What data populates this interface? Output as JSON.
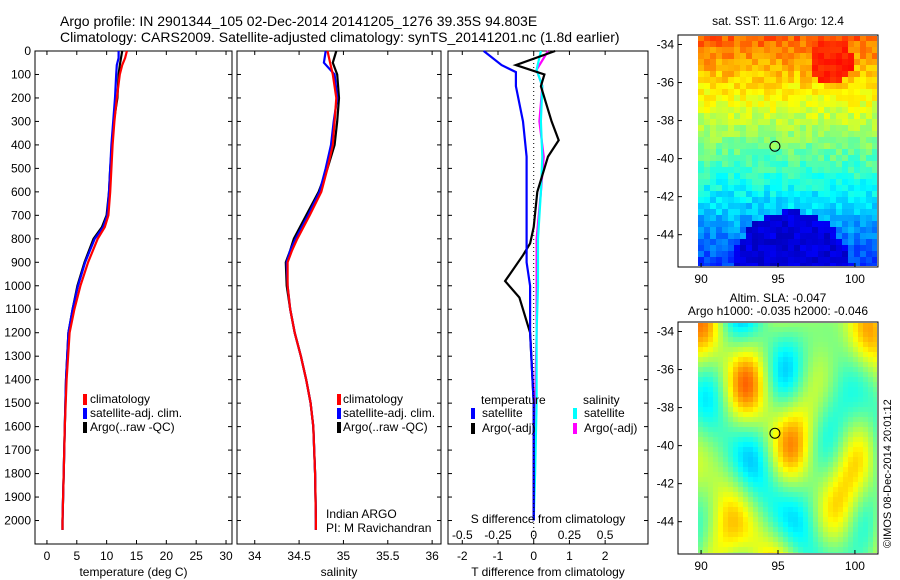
{
  "header": {
    "line1": "Argo profile: IN 2901344_105 02-Dec-2014 20141205_1276 39.35S 94.803E",
    "line2": "Climatology: CARS2009. Satellite-adjusted climatology: synTS_20141201.nc (1.8d earlier)"
  },
  "colors": {
    "climatology": "#ff0000",
    "satellite": "#0000ff",
    "argo": "#000000",
    "sal_satellite": "#00ffff",
    "sal_argo": "#ff00ff"
  },
  "chart_data": [
    {
      "id": "temperature",
      "type": "line",
      "xlabel": "temperature (deg C)",
      "ylabel": "",
      "xlim": [
        -2,
        31
      ],
      "ylim": [
        2100,
        0
      ],
      "xticks": [
        0,
        5,
        10,
        15,
        20,
        25,
        30
      ],
      "yticks": [
        0,
        100,
        200,
        300,
        400,
        500,
        600,
        700,
        800,
        900,
        1000,
        1100,
        1200,
        1300,
        1400,
        1500,
        1600,
        1700,
        1800,
        1900,
        2000
      ],
      "legend": [
        "climatology",
        "satellite-adj. clim.",
        "Argo(..raw -QC)"
      ],
      "series": [
        {
          "name": "climatology",
          "color": "#ff0000",
          "x": [
            13.4,
            13.1,
            12.6,
            12.2,
            11.7,
            11.3,
            11.0,
            10.8,
            10.6,
            10.3,
            9.7,
            8.5,
            6.9,
            5.6,
            4.6,
            3.8,
            3.3,
            3.0,
            2.8,
            2.7,
            2.6,
            2.6
          ],
          "y": [
            0,
            30,
            60,
            100,
            200,
            300,
            400,
            500,
            600,
            700,
            750,
            800,
            900,
            1000,
            1100,
            1200,
            1400,
            1600,
            1800,
            1900,
            2000,
            2040
          ]
        },
        {
          "name": "satellite-adj. clim.",
          "color": "#0000ff",
          "x": [
            12.0,
            12.0,
            11.7,
            11.6,
            11.4,
            11.1,
            10.8,
            10.6,
            10.4,
            10.1,
            9.4,
            8.0,
            6.4,
            5.2,
            4.3,
            3.6,
            3.2,
            3.0,
            2.8,
            2.7,
            2.6,
            2.6
          ],
          "y": [
            0,
            30,
            60,
            100,
            200,
            300,
            400,
            500,
            600,
            700,
            750,
            800,
            900,
            1000,
            1100,
            1200,
            1400,
            1600,
            1800,
            1900,
            2000,
            2040
          ]
        },
        {
          "name": "Argo(..raw -QC)",
          "color": "#000000",
          "x": [
            12.6,
            12.4,
            12.2,
            12.0,
            11.8,
            11.2,
            10.9,
            10.6,
            10.4,
            10.0,
            9.2,
            7.8,
            6.3,
            5.1,
            4.3,
            3.6,
            3.2,
            3.0,
            2.8,
            2.7,
            2.6,
            2.6
          ],
          "y": [
            0,
            30,
            60,
            100,
            200,
            300,
            400,
            500,
            600,
            700,
            750,
            800,
            900,
            1000,
            1100,
            1200,
            1400,
            1600,
            1800,
            1900,
            2000,
            2040
          ]
        }
      ]
    },
    {
      "id": "salinity",
      "type": "line",
      "xlabel": "salinity",
      "ylabel": "",
      "xlim": [
        33.8,
        36.1
      ],
      "ylim": [
        2100,
        0
      ],
      "xticks": [
        34,
        34.5,
        35,
        35.5,
        36
      ],
      "legend": [
        "climatology",
        "satellite-adj. clim.",
        "Argo(..raw -QC)"
      ],
      "annotation": [
        "Indian ARGO",
        "PI: M Ravichandran"
      ],
      "series": [
        {
          "name": "climatology",
          "color": "#ff0000",
          "x": [
            34.82,
            34.85,
            34.88,
            34.92,
            34.9,
            34.88,
            34.82,
            34.75,
            34.62,
            34.48,
            34.42,
            34.37,
            34.37,
            34.4,
            34.45,
            34.52,
            34.58,
            34.63,
            34.66,
            34.68,
            34.69,
            34.69
          ],
          "y": [
            0,
            50,
            100,
            200,
            300,
            400,
            500,
            600,
            700,
            800,
            850,
            900,
            1000,
            1100,
            1200,
            1300,
            1400,
            1500,
            1600,
            1800,
            2000,
            2040
          ]
        },
        {
          "name": "satellite-adj. clim.",
          "color": "#0000ff",
          "x": [
            34.8,
            34.78,
            34.9,
            34.93,
            34.89,
            34.86,
            34.8,
            34.73,
            34.6,
            34.46,
            34.4,
            34.36,
            34.37,
            34.4,
            34.45,
            34.52,
            34.58,
            34.63,
            34.66,
            34.68,
            34.69,
            34.69
          ],
          "y": [
            0,
            50,
            100,
            200,
            300,
            400,
            500,
            600,
            700,
            800,
            850,
            900,
            1000,
            1100,
            1200,
            1300,
            1400,
            1500,
            1600,
            1800,
            2000,
            2040
          ]
        },
        {
          "name": "Argo(..raw -QC)",
          "color": "#000000",
          "x": [
            34.92,
            34.88,
            34.93,
            34.95,
            34.93,
            34.9,
            34.82,
            34.72,
            34.58,
            34.44,
            34.4,
            34.35,
            34.36,
            34.4,
            34.45,
            34.52,
            34.58,
            34.63,
            34.66,
            34.68,
            34.69,
            34.69
          ],
          "y": [
            0,
            50,
            100,
            200,
            300,
            400,
            500,
            600,
            700,
            800,
            850,
            900,
            1000,
            1100,
            1200,
            1300,
            1400,
            1500,
            1600,
            1800,
            2000,
            2040
          ]
        }
      ]
    },
    {
      "id": "difference",
      "type": "line",
      "xlabel": "T difference from climatology",
      "x2label": "S difference from climatology",
      "xlim": [
        -2.4,
        3.2
      ],
      "ylim": [
        2100,
        0
      ],
      "xticks": [
        -2,
        -1,
        0,
        1,
        2
      ],
      "x2ticks": [
        -0.5,
        -0.25,
        0,
        0.25,
        0.5
      ],
      "legend_titles": [
        "temperature",
        "salinity"
      ],
      "legend": [
        "satellite",
        "Argo(-adj)",
        "satellite",
        "Argo(-adj)"
      ],
      "series": [
        {
          "name": "satellite",
          "group": "temperature",
          "color": "#0000ff",
          "x": [
            -1.4,
            -0.9,
            -0.5,
            -0.5,
            -0.3,
            -0.2,
            -0.2,
            -0.2,
            -0.2,
            -0.2,
            -0.1,
            -0.1,
            0.0,
            0.0,
            0.0
          ],
          "y": [
            0,
            60,
            90,
            150,
            300,
            450,
            600,
            700,
            800,
            900,
            1000,
            1200,
            1500,
            1800,
            2000
          ]
        },
        {
          "name": "Argo(-adj)",
          "group": "temperature",
          "color": "#000000",
          "x": [
            0.6,
            -0.5,
            0.3,
            0.2,
            0.5,
            0.7,
            0.4,
            0.1,
            0.0,
            -0.1,
            -0.3,
            -0.8,
            -0.4,
            -0.1,
            0.0,
            0.0,
            0.0
          ],
          "y": [
            0,
            60,
            100,
            150,
            300,
            380,
            450,
            600,
            750,
            820,
            870,
            980,
            1050,
            1200,
            1500,
            1800,
            2000
          ]
        },
        {
          "name": "satellite",
          "group": "salinity",
          "color": "#00ffff",
          "x": [
            0.05,
            0.02,
            0.06,
            0.05,
            0.06,
            0.05,
            0.03,
            0.03,
            0.02,
            0.02,
            0.01,
            0.0
          ],
          "y": [
            0,
            80,
            150,
            300,
            450,
            600,
            800,
            1000,
            1200,
            1500,
            1800,
            2000
          ]
        },
        {
          "name": "Argo(-adj)",
          "group": "salinity",
          "color": "#ff00ff",
          "x": [
            0.1,
            0.02,
            0.06,
            0.04,
            0.07,
            0.05,
            0.02,
            0.02,
            0.02,
            0.01,
            0.0,
            0.0
          ],
          "y": [
            0,
            80,
            150,
            300,
            450,
            600,
            800,
            1000,
            1200,
            1500,
            1800,
            2000
          ]
        }
      ]
    },
    {
      "id": "sst_map",
      "type": "heatmap",
      "title": "sat. SST: 11.6 Argo: 12.4",
      "xlim": [
        88.5,
        101.5
      ],
      "ylim": [
        -45.7,
        -33.5
      ],
      "xticks": [
        90,
        95,
        100
      ],
      "yticks": [
        -34,
        -36,
        -38,
        -40,
        -42,
        -44
      ],
      "marker": {
        "lon": 94.8,
        "lat": -39.35
      }
    },
    {
      "id": "sla_map",
      "type": "heatmap",
      "title": "Altim. SLA: -0.047",
      "subtitle": "Argo h1000: -0.035 h2000: -0.046",
      "xlim": [
        88.5,
        101.5
      ],
      "ylim": [
        -45.7,
        -33.5
      ],
      "xticks": [
        90,
        95,
        100
      ],
      "yticks": [
        -34,
        -36,
        -38,
        -40,
        -42,
        -44
      ],
      "marker": {
        "lon": 94.8,
        "lat": -39.35
      }
    }
  ],
  "footer": {
    "credit": "©IMOS 08-Dec-2014 20:01:12"
  }
}
